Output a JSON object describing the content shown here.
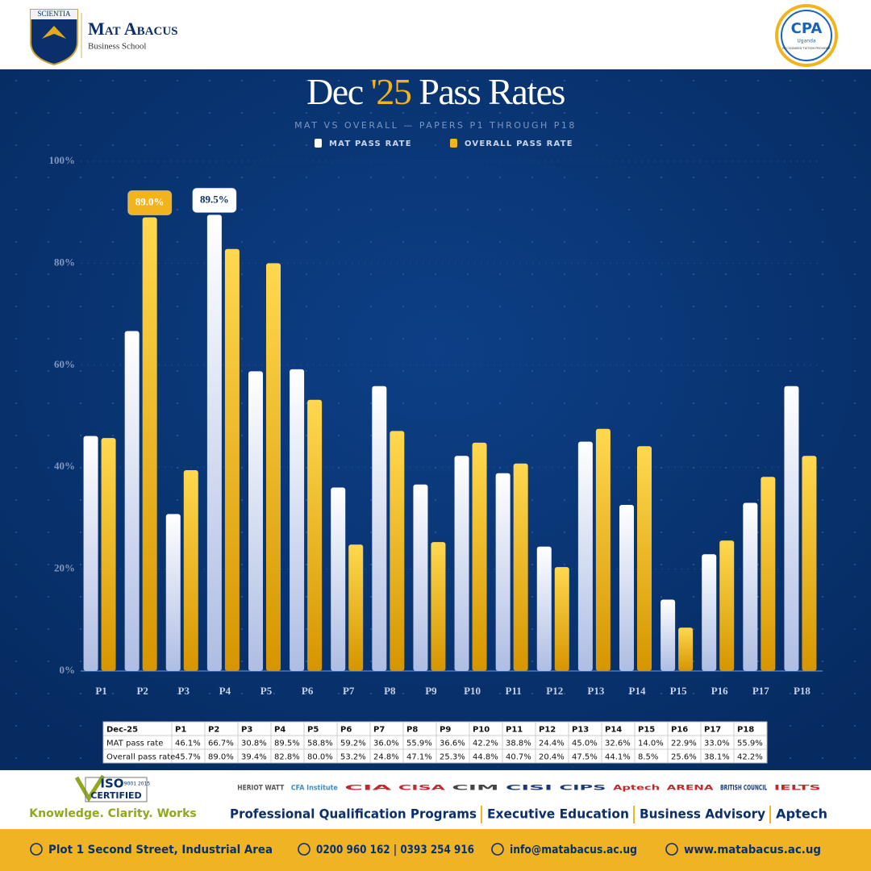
{
  "header": {
    "crest_text": "SCIENTIA",
    "brand": "Mat Abacus",
    "brand_sub": "Business School",
    "badge": "CPA",
    "badge_sub": "Uganda",
    "badge_note": "RECOGNISED TUITION PROVIDER"
  },
  "chart_data": {
    "type": "bar",
    "title": [
      "Dec",
      "'25",
      "Pass Rates"
    ],
    "subtitle": "MAT VS OVERALL — PAPERS P1 THROUGH P18",
    "categories": [
      "P1",
      "P2",
      "P3",
      "P4",
      "P5",
      "P6",
      "P7",
      "P8",
      "P9",
      "P10",
      "P11",
      "P12",
      "P13",
      "P14",
      "P15",
      "P16",
      "P17",
      "P18"
    ],
    "series": [
      {
        "name": "MAT PASS RATE",
        "color": "#ffffff",
        "values": [
          46.1,
          66.7,
          30.8,
          89.5,
          58.8,
          59.2,
          36.0,
          55.9,
          36.6,
          42.2,
          38.8,
          24.4,
          45.0,
          32.6,
          14.0,
          22.9,
          33.0,
          55.9
        ],
        "value_labels": [
          null,
          null,
          null,
          "89.5%",
          null,
          null,
          null,
          null,
          null,
          null,
          null,
          null,
          null,
          null,
          null,
          null,
          null,
          null
        ]
      },
      {
        "name": "OVERALL PASS RATE",
        "color": "#f2b31c",
        "values": [
          45.7,
          89.0,
          39.4,
          82.8,
          80.0,
          53.2,
          24.8,
          47.1,
          25.3,
          44.8,
          40.7,
          20.4,
          47.5,
          44.1,
          8.5,
          25.6,
          38.1,
          42.2
        ],
        "value_labels": [
          null,
          "89.0%",
          null,
          null,
          null,
          null,
          null,
          null,
          null,
          null,
          null,
          null,
          null,
          null,
          null,
          null,
          null,
          null
        ]
      }
    ],
    "ylim": [
      0,
      100
    ],
    "yticks": [
      {
        "value": 0,
        "label": "0%"
      },
      {
        "value": 20,
        "label": "20%"
      },
      {
        "value": 40,
        "label": "40%"
      },
      {
        "value": 60,
        "label": "60%"
      },
      {
        "value": 80,
        "label": "80%"
      },
      {
        "value": 100,
        "label": "100%"
      }
    ],
    "grid": true,
    "legend": "top"
  },
  "table": {
    "header": [
      "Dec-25",
      "P1",
      "P2",
      "P3",
      "P4",
      "P5",
      "P6",
      "P7",
      "P8",
      "P9",
      "P10",
      "P11",
      "P12",
      "P13",
      "P14",
      "P15",
      "P16",
      "P17",
      "P18"
    ],
    "rows": [
      [
        "MAT pass rate",
        "46.1%",
        "66.7%",
        "30.8%",
        "89.5%",
        "58.8%",
        "59.2%",
        "36.0%",
        "55.9%",
        "36.6%",
        "42.2%",
        "38.8%",
        "24.4%",
        "45.0%",
        "32.6%",
        "14.0%",
        "22.9%",
        "33.0%",
        "55.9%"
      ],
      [
        "Overall pass rate",
        "45.7%",
        "89.0%",
        "39.4%",
        "82.8%",
        "80.0%",
        "53.2%",
        "24.8%",
        "47.1%",
        "25.3%",
        "44.8%",
        "40.7%",
        "20.4%",
        "47.5%",
        "44.1%",
        "8.5%",
        "25.6%",
        "38.1%",
        "42.2%"
      ]
    ]
  },
  "footer": {
    "iso": "ISO",
    "iso_nums": "9001 2015",
    "certified": "CERTIFIED",
    "tagline": "Knowledge. Clarity. Works",
    "logos": [
      "HERIOT WATT",
      "CFA Institute",
      "CIA",
      "CISA",
      "CIM",
      "CISI",
      "CIPS",
      "Aptech",
      "ARENA",
      "BRITISH COUNCIL",
      "IELTS"
    ],
    "services": [
      "Professional Qualification Programs",
      "Executive Education",
      "Business Advisory",
      "Aptech"
    ],
    "address": "Plot 1 Second Street, Industrial Area",
    "phone": "0200 960 162 | 0393 254 916",
    "email": "info@matabacus.ac.ug",
    "web": "www.matabacus.ac.ug"
  }
}
